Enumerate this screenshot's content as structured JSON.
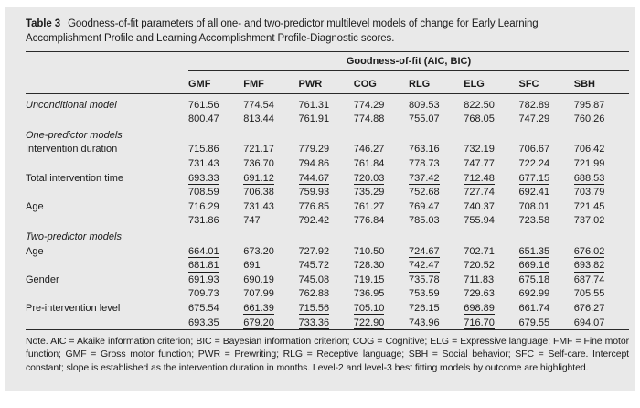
{
  "title": {
    "label": "Table 3",
    "text": "Goodness-of-fit parameters of all one- and two-predictor multilevel models of change for Early Learning Accomplishment Profile and Learning Accomplishment Profile-Diagnostic scores."
  },
  "table": {
    "span_header": "Goodness-of-fit (AIC, BIC)",
    "columns": [
      "GMF",
      "FMF",
      "PWR",
      "COG",
      "RLG",
      "ELG",
      "SFC",
      "SBH"
    ],
    "sections": [
      {
        "header": null,
        "rows": [
          {
            "label": "Unconditional model",
            "italic": true,
            "aic": [
              "761.56",
              "774.54",
              "761.31",
              "774.29",
              "809.53",
              "822.50",
              "782.89",
              "795.87"
            ],
            "bic": [
              "800.47",
              "813.44",
              "761.91",
              "774.88",
              "755.07",
              "768.05",
              "747.29",
              "760.26"
            ],
            "aic_hl": [
              0,
              0,
              0,
              0,
              0,
              0,
              0,
              0
            ],
            "bic_hl": [
              0,
              0,
              0,
              0,
              0,
              0,
              0,
              0
            ]
          }
        ]
      },
      {
        "header": "One-predictor models",
        "rows": [
          {
            "label": "Intervention duration",
            "italic": false,
            "aic": [
              "715.86",
              "721.17",
              "779.29",
              "746.27",
              "763.16",
              "732.19",
              "706.67",
              "706.42"
            ],
            "bic": [
              "731.43",
              "736.70",
              "794.86",
              "761.84",
              "778.73",
              "747.77",
              "722.24",
              "721.99"
            ],
            "aic_hl": [
              0,
              0,
              0,
              0,
              0,
              0,
              0,
              0
            ],
            "bic_hl": [
              0,
              0,
              0,
              0,
              0,
              0,
              0,
              0
            ]
          },
          {
            "label": "Total intervention time",
            "italic": false,
            "aic": [
              "693.33",
              "691.12",
              "744.67",
              "720.03",
              "737.42",
              "712.48",
              "677.15",
              "688.53"
            ],
            "bic": [
              "708.59",
              "706.38",
              "759.93",
              "735.29",
              "752.68",
              "727.74",
              "692.41",
              "703.79"
            ],
            "aic_hl": [
              1,
              1,
              1,
              1,
              1,
              1,
              1,
              1
            ],
            "bic_hl": [
              1,
              1,
              1,
              1,
              1,
              1,
              1,
              1
            ]
          },
          {
            "label": "Age",
            "italic": false,
            "aic": [
              "716.29",
              "731.43",
              "776.85",
              "761.27",
              "769.47",
              "740.37",
              "708.01",
              "721.45"
            ],
            "bic": [
              "731.86",
              "747",
              "792.42",
              "776.84",
              "785.03",
              "755.94",
              "723.58",
              "737.02"
            ],
            "aic_hl": [
              0,
              0,
              0,
              0,
              0,
              0,
              0,
              0
            ],
            "bic_hl": [
              0,
              0,
              0,
              0,
              0,
              0,
              0,
              0
            ]
          }
        ]
      },
      {
        "header": "Two-predictor models",
        "rows": [
          {
            "label": "Age",
            "italic": false,
            "aic": [
              "664.01",
              "673.20",
              "727.92",
              "710.50",
              "724.67",
              "702.71",
              "651.35",
              "676.02"
            ],
            "bic": [
              "681.81",
              "691",
              "745.72",
              "728.30",
              "742.47",
              "720.52",
              "669.16",
              "693.82"
            ],
            "aic_hl": [
              1,
              0,
              0,
              0,
              1,
              0,
              1,
              1
            ],
            "bic_hl": [
              1,
              0,
              0,
              0,
              1,
              0,
              1,
              1
            ]
          },
          {
            "label": "Gender",
            "italic": false,
            "aic": [
              "691.93",
              "690.19",
              "745.08",
              "719.15",
              "735.78",
              "711.83",
              "675.18",
              "687.74"
            ],
            "bic": [
              "709.73",
              "707.99",
              "762.88",
              "736.95",
              "753.59",
              "729.63",
              "692.99",
              "705.55"
            ],
            "aic_hl": [
              0,
              0,
              0,
              0,
              0,
              0,
              0,
              0
            ],
            "bic_hl": [
              0,
              0,
              0,
              0,
              0,
              0,
              0,
              0
            ]
          },
          {
            "label": "Pre-intervention level",
            "italic": false,
            "aic": [
              "675.54",
              "661.39",
              "715.56",
              "705.10",
              "726.15",
              "698.89",
              "661.74",
              "676.27"
            ],
            "bic": [
              "693.35",
              "679.20",
              "733.36",
              "722.90",
              "743.96",
              "716.70",
              "679.55",
              "694.07"
            ],
            "aic_hl": [
              0,
              1,
              1,
              1,
              0,
              1,
              0,
              0
            ],
            "bic_hl": [
              0,
              1,
              1,
              1,
              0,
              1,
              0,
              0
            ]
          }
        ]
      }
    ]
  },
  "footnote": "Note. AIC = Akaike information criterion; BIC = Bayesian information criterion; COG = Cognitive; ELG = Expressive language; FMF = Fine motor function; GMF = Gross motor function; PWR = Prewriting; RLG = Receptive language; SBH = Social behavior; SFC = Self-care. Intercept constant; slope is established as the intervention duration in months. Level-2 and level-3 best fitting models by outcome are highlighted."
}
